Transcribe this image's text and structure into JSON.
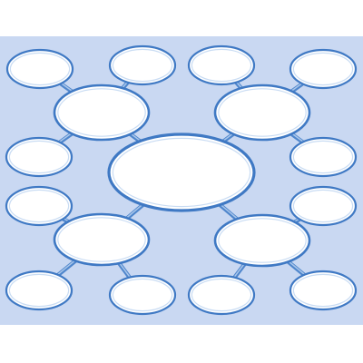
{
  "diagram": {
    "type": "bubble-map",
    "colors": {
      "background": "#c9d8f2",
      "frame_edge": "#ffffff",
      "bubble_fill": "#ffffff",
      "bubble_outline": "#3f79c4",
      "connector": "#4f86cc"
    },
    "nodes": [
      {
        "id": "center",
        "role": "main-topic",
        "label": ""
      },
      {
        "id": "upper-left",
        "role": "sub-topic",
        "label": ""
      },
      {
        "id": "upper-right",
        "role": "sub-topic",
        "label": ""
      },
      {
        "id": "lower-left",
        "role": "sub-topic",
        "label": ""
      },
      {
        "id": "lower-right",
        "role": "sub-topic",
        "label": ""
      },
      {
        "id": "top-left-corner",
        "role": "detail",
        "label": ""
      },
      {
        "id": "top-left-inner",
        "role": "detail",
        "label": ""
      },
      {
        "id": "top-right-inner",
        "role": "detail",
        "label": ""
      },
      {
        "id": "top-right-corner",
        "role": "detail",
        "label": ""
      },
      {
        "id": "mid-left-upper",
        "role": "detail",
        "label": ""
      },
      {
        "id": "mid-left-lower",
        "role": "detail",
        "label": ""
      },
      {
        "id": "mid-right-upper",
        "role": "detail",
        "label": ""
      },
      {
        "id": "mid-right-lower",
        "role": "detail",
        "label": ""
      },
      {
        "id": "bottom-left-corner",
        "role": "detail",
        "label": ""
      },
      {
        "id": "bottom-left-inner",
        "role": "detail",
        "label": ""
      },
      {
        "id": "bottom-right-inner",
        "role": "detail",
        "label": ""
      },
      {
        "id": "bottom-right-corner",
        "role": "detail",
        "label": ""
      }
    ],
    "edges": [
      {
        "from": "center",
        "to": "upper-left"
      },
      {
        "from": "center",
        "to": "upper-right"
      },
      {
        "from": "center",
        "to": "lower-left"
      },
      {
        "from": "center",
        "to": "lower-right"
      },
      {
        "from": "upper-left",
        "to": "top-left-corner"
      },
      {
        "from": "upper-left",
        "to": "top-left-inner"
      },
      {
        "from": "upper-left",
        "to": "mid-left-upper"
      },
      {
        "from": "upper-right",
        "to": "top-right-inner"
      },
      {
        "from": "upper-right",
        "to": "top-right-corner"
      },
      {
        "from": "upper-right",
        "to": "mid-right-upper"
      },
      {
        "from": "lower-left",
        "to": "mid-left-lower"
      },
      {
        "from": "lower-left",
        "to": "bottom-left-corner"
      },
      {
        "from": "lower-left",
        "to": "bottom-left-inner"
      },
      {
        "from": "lower-right",
        "to": "mid-right-lower"
      },
      {
        "from": "lower-right",
        "to": "bottom-right-inner"
      },
      {
        "from": "lower-right",
        "to": "bottom-right-corner"
      }
    ]
  }
}
